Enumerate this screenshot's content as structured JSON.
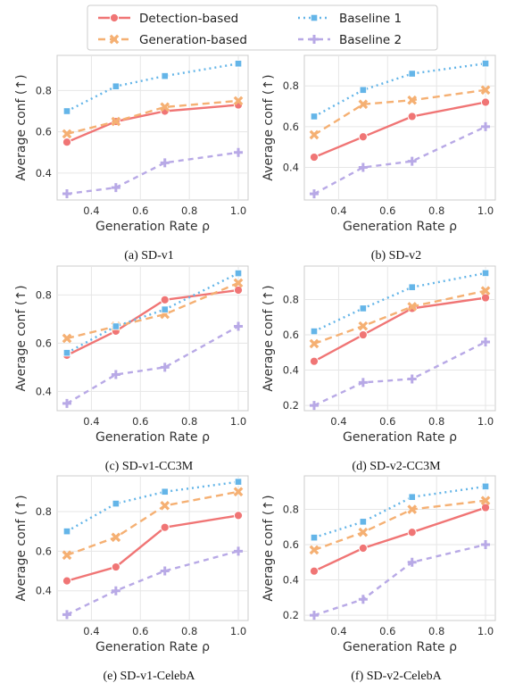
{
  "legend": {
    "entries": [
      {
        "label": "Detection-based",
        "series": 0
      },
      {
        "label": "Generation-based",
        "series": 1
      },
      {
        "label": "Baseline 1",
        "series": 2
      },
      {
        "label": "Baseline 2",
        "series": 3
      }
    ]
  },
  "styles": {
    "series": [
      {
        "color": "#f07575",
        "dash": "",
        "marker": "circle"
      },
      {
        "color": "#f5b073",
        "dash": "8,5",
        "marker": "x"
      },
      {
        "color": "#64b5e8",
        "dash": "2,4",
        "marker": "square"
      },
      {
        "color": "#b8a9e6",
        "dash": "6,5",
        "marker": "plus"
      }
    ]
  },
  "chart_data": [
    {
      "type": "line",
      "caption": "(a)  SD-v1",
      "xlabel": "Generation Rate ρ",
      "ylabel": "Average conf (↑)",
      "x": [
        0.3,
        0.5,
        0.7,
        1.0
      ],
      "xticks": [
        0.4,
        0.6,
        0.8,
        1.0
      ],
      "xlim": [
        0.26,
        1.04
      ],
      "yticks": [
        0.4,
        0.6,
        0.8
      ],
      "ylim": [
        0.27,
        0.97
      ],
      "series": [
        {
          "name": "Detection-based",
          "values": [
            0.55,
            0.65,
            0.7,
            0.73
          ]
        },
        {
          "name": "Generation-based",
          "values": [
            0.59,
            0.65,
            0.72,
            0.75
          ]
        },
        {
          "name": "Baseline 1",
          "values": [
            0.7,
            0.82,
            0.87,
            0.93
          ]
        },
        {
          "name": "Baseline 2",
          "values": [
            0.3,
            0.33,
            0.45,
            0.5
          ]
        }
      ]
    },
    {
      "type": "line",
      "caption": "(b)  SD-v2",
      "xlabel": "Generation Rate ρ",
      "ylabel": "Average conf (↑)",
      "x": [
        0.3,
        0.5,
        0.7,
        1.0
      ],
      "xticks": [
        0.4,
        0.6,
        0.8,
        1.0
      ],
      "xlim": [
        0.26,
        1.04
      ],
      "yticks": [
        0.4,
        0.6,
        0.8
      ],
      "ylim": [
        0.24,
        0.95
      ],
      "series": [
        {
          "name": "Detection-based",
          "values": [
            0.45,
            0.55,
            0.65,
            0.72
          ]
        },
        {
          "name": "Generation-based",
          "values": [
            0.56,
            0.71,
            0.73,
            0.78
          ]
        },
        {
          "name": "Baseline 1",
          "values": [
            0.65,
            0.78,
            0.86,
            0.91
          ]
        },
        {
          "name": "Baseline 2",
          "values": [
            0.27,
            0.4,
            0.43,
            0.6
          ]
        }
      ]
    },
    {
      "type": "line",
      "caption": "(c)  SD-v1-CC3M",
      "xlabel": "Generation Rate ρ",
      "ylabel": "Average conf (↑)",
      "x": [
        0.3,
        0.5,
        0.7,
        1.0
      ],
      "xticks": [
        0.4,
        0.6,
        0.8,
        1.0
      ],
      "xlim": [
        0.26,
        1.04
      ],
      "yticks": [
        0.4,
        0.6,
        0.8
      ],
      "ylim": [
        0.32,
        0.92
      ],
      "series": [
        {
          "name": "Detection-based",
          "values": [
            0.55,
            0.65,
            0.78,
            0.82
          ]
        },
        {
          "name": "Generation-based",
          "values": [
            0.62,
            0.67,
            0.72,
            0.85
          ]
        },
        {
          "name": "Baseline 1",
          "values": [
            0.56,
            0.67,
            0.74,
            0.89
          ]
        },
        {
          "name": "Baseline 2",
          "values": [
            0.35,
            0.47,
            0.5,
            0.67
          ]
        }
      ]
    },
    {
      "type": "line",
      "caption": "(d)  SD-v2-CC3M",
      "xlabel": "Generation Rate ρ",
      "ylabel": "Average conf (↑)",
      "x": [
        0.3,
        0.5,
        0.7,
        1.0
      ],
      "xticks": [
        0.4,
        0.6,
        0.8,
        1.0
      ],
      "xlim": [
        0.26,
        1.04
      ],
      "yticks": [
        0.2,
        0.4,
        0.6,
        0.8
      ],
      "ylim": [
        0.17,
        0.99
      ],
      "series": [
        {
          "name": "Detection-based",
          "values": [
            0.45,
            0.6,
            0.75,
            0.81
          ]
        },
        {
          "name": "Generation-based",
          "values": [
            0.55,
            0.65,
            0.76,
            0.85
          ]
        },
        {
          "name": "Baseline 1",
          "values": [
            0.62,
            0.75,
            0.87,
            0.95
          ]
        },
        {
          "name": "Baseline 2",
          "values": [
            0.2,
            0.33,
            0.35,
            0.56
          ]
        }
      ]
    },
    {
      "type": "line",
      "caption": "(e)  SD-v1-CelebA",
      "xlabel": "Generation Rate ρ",
      "ylabel": "Average conf (↑)",
      "x": [
        0.3,
        0.5,
        0.7,
        1.0
      ],
      "xticks": [
        0.4,
        0.6,
        0.8,
        1.0
      ],
      "xlim": [
        0.26,
        1.04
      ],
      "yticks": [
        0.4,
        0.6,
        0.8
      ],
      "ylim": [
        0.25,
        0.98
      ],
      "series": [
        {
          "name": "Detection-based",
          "values": [
            0.45,
            0.52,
            0.72,
            0.78
          ]
        },
        {
          "name": "Generation-based",
          "values": [
            0.58,
            0.67,
            0.83,
            0.9
          ]
        },
        {
          "name": "Baseline 1",
          "values": [
            0.7,
            0.84,
            0.9,
            0.95
          ]
        },
        {
          "name": "Baseline 2",
          "values": [
            0.28,
            0.4,
            0.5,
            0.6
          ]
        }
      ]
    },
    {
      "type": "line",
      "caption": "(f)  SD-v2-CelebA",
      "xlabel": "Generation Rate ρ",
      "ylabel": "Average conf (↑)",
      "x": [
        0.3,
        0.5,
        0.7,
        1.0
      ],
      "xticks": [
        0.4,
        0.6,
        0.8,
        1.0
      ],
      "xlim": [
        0.26,
        1.04
      ],
      "yticks": [
        0.2,
        0.4,
        0.6,
        0.8
      ],
      "ylim": [
        0.17,
        0.99
      ],
      "series": [
        {
          "name": "Detection-based",
          "values": [
            0.45,
            0.58,
            0.67,
            0.81
          ]
        },
        {
          "name": "Generation-based",
          "values": [
            0.57,
            0.67,
            0.8,
            0.85
          ]
        },
        {
          "name": "Baseline 1",
          "values": [
            0.64,
            0.73,
            0.87,
            0.93
          ]
        },
        {
          "name": "Baseline 2",
          "values": [
            0.2,
            0.29,
            0.5,
            0.6
          ]
        }
      ]
    }
  ]
}
